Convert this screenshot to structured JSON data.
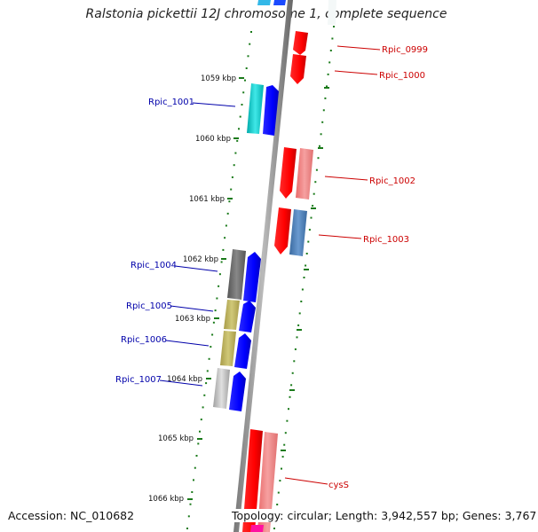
{
  "title": "Ralstonia pickettii 12J chromosome 1, complete sequence",
  "footer": {
    "accession": "Accession: NC_010682",
    "topology": "Topology: circular; Length: 3,942,557 bp; Genes: 3,767"
  },
  "colors": {
    "forward_label": "#0000aa",
    "reverse_label": "#cc0000",
    "backbone": "#8a8a8a",
    "tick": "#1a7a1a",
    "red": "#ff1010",
    "salmon": "#f08080",
    "blue": "#0a0aff",
    "cyan": "#00cccc",
    "steelblue": "#4a7ab0",
    "darkgray": "#666666",
    "khaki": "#b8b060",
    "lightgray": "#b8b8b8",
    "magenta": "#ff10a0"
  },
  "kbp_labels": [
    "1059 kbp",
    "1060 kbp",
    "1061 kbp",
    "1062 kbp",
    "1063 kbp",
    "1064 kbp",
    "1065 kbp",
    "1066 kbp"
  ],
  "gene_labels": {
    "rpic_0999": "Rpic_0999",
    "rpic_1000": "Rpic_1000",
    "rpic_1001": "Rpic_1001",
    "rpic_1002": "Rpic_1002",
    "rpic_1003": "Rpic_1003",
    "rpic_1004": "Rpic_1004",
    "rpic_1005": "Rpic_1005",
    "rpic_1006": "Rpic_1006",
    "rpic_1007": "Rpic_1007",
    "cyss": "cysS"
  }
}
